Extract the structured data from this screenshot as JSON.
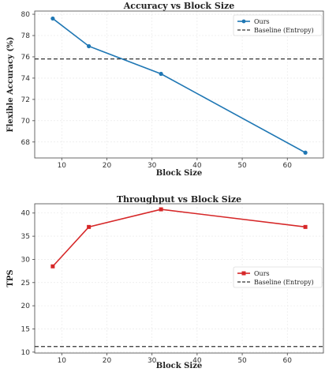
{
  "chart_data": [
    {
      "type": "line",
      "title": "Accuracy vs Block Size",
      "xlabel": "Block Size",
      "ylabel": "Flexible Accuracy (%)",
      "xlim": [
        4,
        68
      ],
      "ylim": [
        66.5,
        80.3
      ],
      "xticks": [
        10,
        20,
        30,
        40,
        50,
        60
      ],
      "yticks": [
        68,
        70,
        72,
        74,
        76,
        78,
        80
      ],
      "grid": true,
      "legend_position": "top-right",
      "series": [
        {
          "name": "Ours",
          "color": "#1f77b4",
          "marker": "circle",
          "x": [
            8,
            16,
            32,
            64
          ],
          "y": [
            79.6,
            77.0,
            74.4,
            67.0
          ]
        }
      ],
      "reference_line": {
        "name": "Baseline (Entropy)",
        "y": 75.8,
        "color": "#333333",
        "style": "dashed"
      }
    },
    {
      "type": "line",
      "title": "Throughput vs Block Size",
      "xlabel": "Block Size",
      "ylabel": "TPS",
      "xlim": [
        4,
        68
      ],
      "ylim": [
        9.8,
        42.0
      ],
      "xticks": [
        10,
        20,
        30,
        40,
        50,
        60
      ],
      "yticks": [
        10,
        15,
        20,
        25,
        30,
        35,
        40
      ],
      "grid": true,
      "legend_position": "right",
      "series": [
        {
          "name": "Ours",
          "color": "#d62728",
          "marker": "square",
          "x": [
            8,
            16,
            32,
            64
          ],
          "y": [
            28.5,
            37.0,
            40.8,
            37.0
          ]
        }
      ],
      "reference_line": {
        "name": "Baseline (Entropy)",
        "y": 11.2,
        "color": "#333333",
        "style": "dashed"
      }
    }
  ]
}
